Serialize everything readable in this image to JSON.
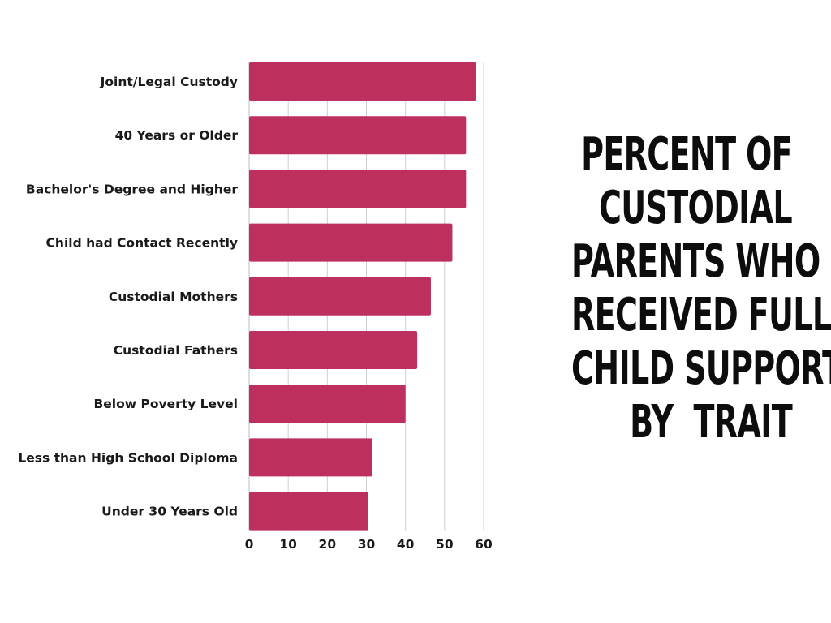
{
  "title_lines": [
    "PERCENT OF",
    "CUSTODIAL",
    "PARENTS WHO",
    "RECEIVED FULLD",
    "CHILD SUPPORT",
    "BY  TRAIT"
  ],
  "chart_data": {
    "type": "bar",
    "orientation": "horizontal",
    "title": "PERCENT OF CUSTODIAL PARENTS WHO RECEIVED FULLD CHILD SUPPORT BY  TRAIT",
    "xlabel": "",
    "ylabel": "",
    "categories": [
      "Joint/Legal Custody",
      "40 Years or Older",
      "Bachelor's Degree and Higher",
      "Child had Contact Recently",
      "Custodial Mothers",
      "Custodial Fathers",
      "Below Poverty Level",
      "Less than High School Diploma",
      "Under 30 Years Old"
    ],
    "values": [
      58,
      55.5,
      55.5,
      52,
      46.5,
      43,
      40,
      31.5,
      30.5
    ],
    "xlim": [
      0,
      60
    ],
    "xticks": [
      "0",
      "10",
      "20",
      "30",
      "40",
      "50",
      "60"
    ],
    "grid": true,
    "legend": "none",
    "bar_color": "#bd2f5d"
  }
}
